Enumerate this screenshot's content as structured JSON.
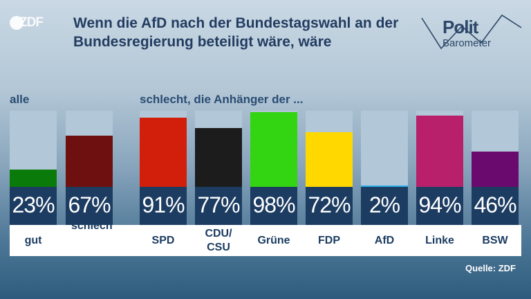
{
  "logo": {
    "text": "ZDF"
  },
  "title": "Wenn die AfD nach der Bundestagswahl an der Bundesregierung beteiligt wäre, wäre",
  "brand": {
    "word1": "Polit",
    "word2": "Barometer"
  },
  "source": "Quelle: ZDF",
  "chart_data": {
    "type": "bar",
    "title": "Wenn die AfD nach der Bundestagswahl an der Bundesregierung beteiligt wäre, wäre",
    "group_labels": {
      "all": "alle",
      "supporters": "schlecht, die Anhänger der ..."
    },
    "ylim": [
      0,
      100
    ],
    "unit": "%",
    "bars": [
      {
        "category": "gut",
        "group": "all",
        "value": 23,
        "label": "23%",
        "color": "#0a7a0a"
      },
      {
        "category": "",
        "group": "all",
        "value": 67,
        "label": "67%",
        "sublabel": "schlecht",
        "color": "#6e1010"
      },
      {
        "category": "SPD",
        "group": "supporters",
        "value": 91,
        "label": "91%",
        "color": "#d11f0b"
      },
      {
        "category": "CDU/ CSU",
        "group": "supporters",
        "value": 77,
        "label": "77%",
        "color": "#1c1c1c"
      },
      {
        "category": "Grüne",
        "group": "supporters",
        "value": 98,
        "label": "98%",
        "color": "#33d411"
      },
      {
        "category": "FDP",
        "group": "supporters",
        "value": 72,
        "label": "72%",
        "color": "#ffd800"
      },
      {
        "category": "AfD",
        "group": "supporters",
        "value": 2,
        "label": "2%",
        "color": "#2aaee8"
      },
      {
        "category": "Linke",
        "group": "supporters",
        "value": 94,
        "label": "94%",
        "color": "#b8206b"
      },
      {
        "category": "BSW",
        "group": "supporters",
        "value": 46,
        "label": "46%",
        "color": "#6b0a6e"
      }
    ]
  }
}
